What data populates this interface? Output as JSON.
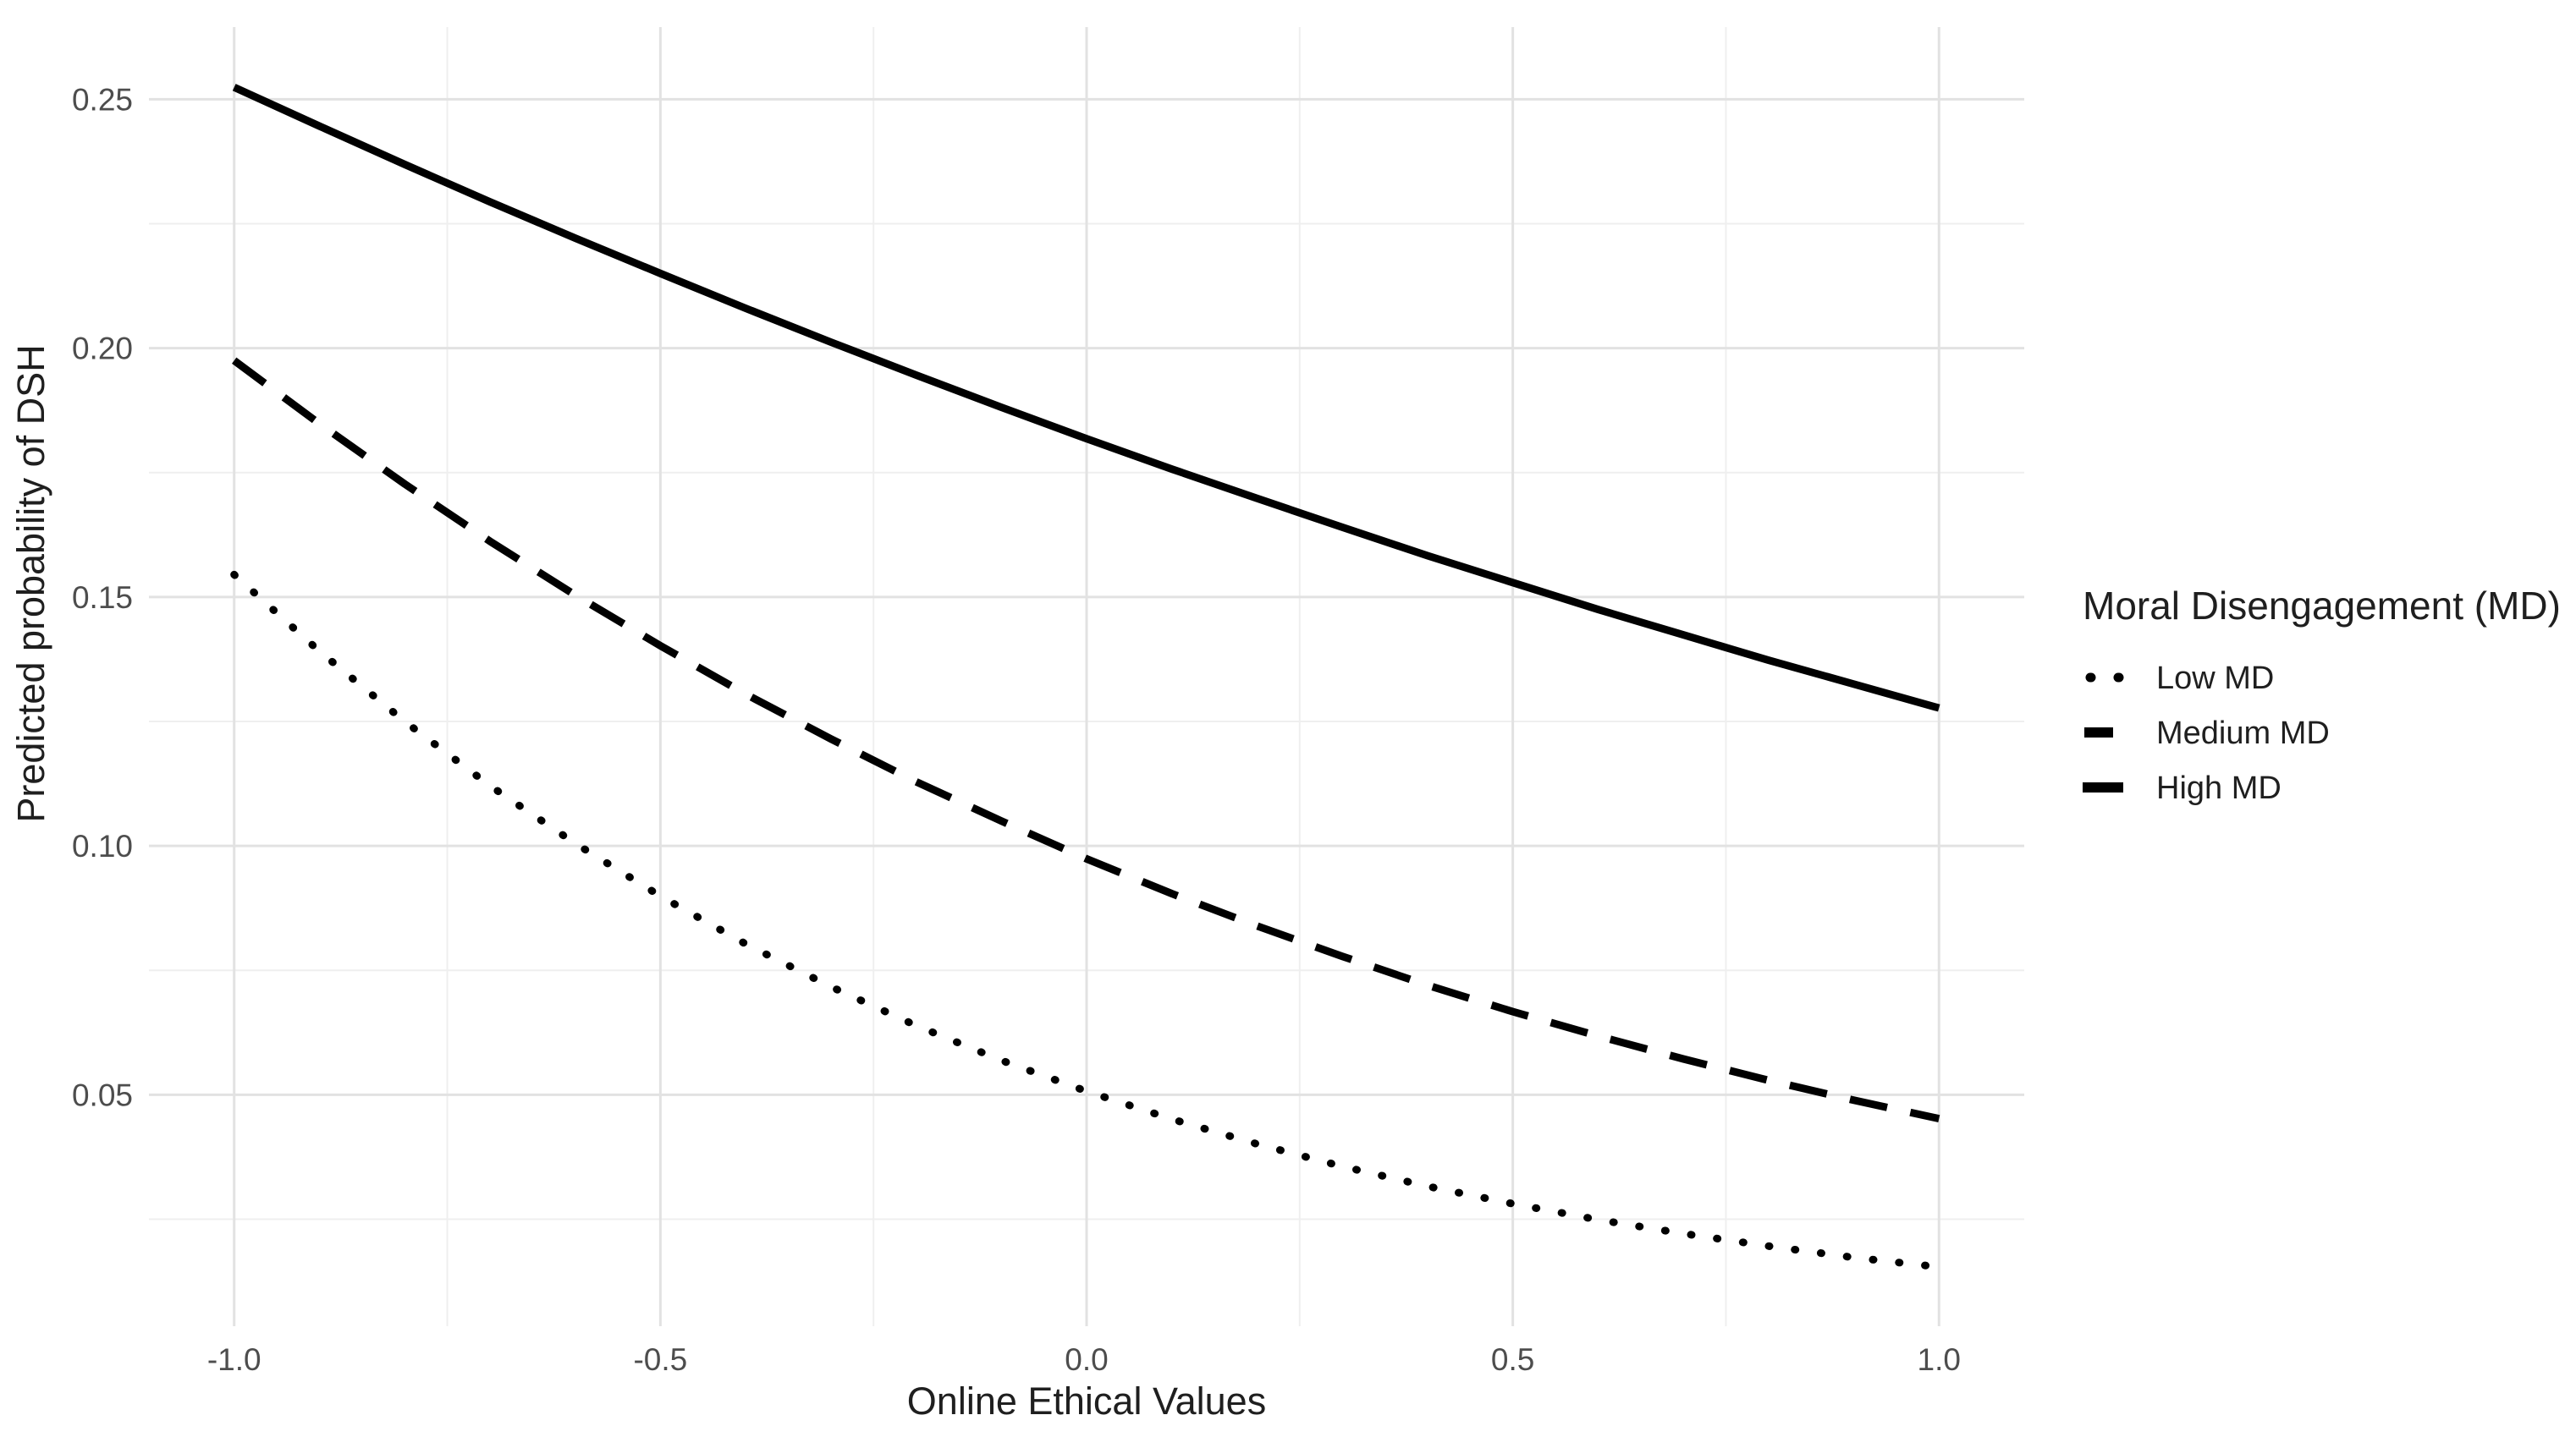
{
  "chart_data": {
    "type": "line",
    "title": "",
    "xlabel": "Online Ethical Values",
    "ylabel": "Predicted probability of DSH",
    "legend_title": "Moral Disengagement (MD)",
    "legend_position": "right",
    "grid": true,
    "xlim": [
      -1.1,
      1.1
    ],
    "ylim": [
      0.0035,
      0.2645
    ],
    "x_tick_values": [
      -1.0,
      -0.5,
      0.0,
      0.5,
      1.0
    ],
    "x_tick_labels": [
      "-1.0",
      "-0.5",
      "0.0",
      "0.5",
      "1.0"
    ],
    "x_minor_gridlines": [
      -0.75,
      -0.25,
      0.25,
      0.75
    ],
    "y_tick_values": [
      0.05,
      0.1,
      0.15,
      0.2,
      0.25
    ],
    "y_tick_labels": [
      "0.05",
      "0.10",
      "0.15",
      "0.20",
      "0.25"
    ],
    "y_minor_gridlines": [
      0.025,
      0.075,
      0.125,
      0.175,
      0.225
    ],
    "x": [
      -1.0,
      -0.9,
      -0.8,
      -0.7,
      -0.6,
      -0.5,
      -0.4,
      -0.3,
      -0.2,
      -0.1,
      0.0,
      0.1,
      0.2,
      0.3,
      0.4,
      0.5,
      0.6,
      0.7,
      0.8,
      0.9,
      1.0
    ],
    "series": [
      {
        "name": "Low MD",
        "linestyle": "dotted",
        "color": "#000000",
        "values": [
          0.1545,
          0.1391,
          0.125,
          0.1121,
          0.1005,
          0.0899,
          0.0803,
          0.0717,
          0.0639,
          0.0569,
          0.0507,
          0.0451,
          0.0401,
          0.0356,
          0.0316,
          0.0281,
          0.0249,
          0.0221,
          0.0196,
          0.0173,
          0.0154
        ]
      },
      {
        "name": "Medium MD",
        "linestyle": "dashed",
        "color": "#000000",
        "values": [
          0.1975,
          0.1848,
          0.1727,
          0.1612,
          0.1504,
          0.1402,
          0.1305,
          0.1215,
          0.1129,
          0.105,
          0.0974,
          0.0904,
          0.0839,
          0.0778,
          0.072,
          0.0667,
          0.0618,
          0.0572,
          0.0529,
          0.0489,
          0.0452
        ]
      },
      {
        "name": "High MD",
        "linestyle": "solid",
        "color": "#000000",
        "values": [
          0.2524,
          0.2446,
          0.2369,
          0.2294,
          0.2221,
          0.215,
          0.208,
          0.2012,
          0.1946,
          0.1881,
          0.1818,
          0.1757,
          0.1698,
          0.164,
          0.1583,
          0.1529,
          0.1475,
          0.1424,
          0.1373,
          0.1325,
          0.1277
        ]
      }
    ],
    "colors": {
      "background": "#ffffff",
      "line": "#000000",
      "grid_major": "#e2e2e2",
      "grid_minor": "#efefef",
      "tick_text": "#4d4d4d",
      "title_text": "#1f1f1f"
    }
  }
}
